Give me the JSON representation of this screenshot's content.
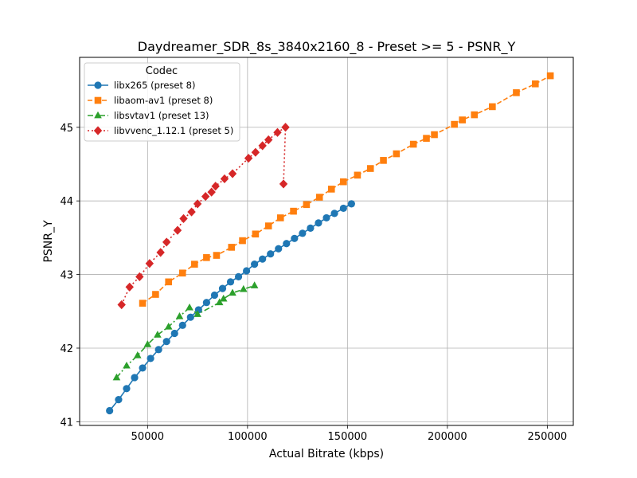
{
  "chart_data": {
    "type": "line",
    "title": "Daydreamer_SDR_8s_3840x2160_8 - Preset >= 5 - PSNR_Y",
    "xlabel": "Actual Bitrate (kbps)",
    "ylabel": "PSNR_Y",
    "xlim": [
      16000,
      263000
    ],
    "ylim": [
      40.95,
      45.95
    ],
    "xticks": [
      50000,
      100000,
      150000,
      200000,
      250000
    ],
    "xtick_labels": [
      "50000",
      "100000",
      "150000",
      "200000",
      "250000"
    ],
    "yticks": [
      41,
      42,
      43,
      44,
      45
    ],
    "ytick_labels": [
      "41",
      "42",
      "43",
      "44",
      "45"
    ],
    "grid": true,
    "legend": {
      "title": "Codec",
      "position": "top-left"
    },
    "series": [
      {
        "name": "libx265 (preset 8)",
        "color": "#1f77b4",
        "linestyle": "solid",
        "marker": "circle",
        "points": [
          [
            31000,
            41.15
          ],
          [
            35500,
            41.3
          ],
          [
            39500,
            41.45
          ],
          [
            43500,
            41.6
          ],
          [
            47500,
            41.73
          ],
          [
            51500,
            41.86
          ],
          [
            55500,
            41.98
          ],
          [
            59500,
            42.09
          ],
          [
            63500,
            42.2
          ],
          [
            67500,
            42.31
          ],
          [
            71500,
            42.42
          ],
          [
            75500,
            42.52
          ],
          [
            79500,
            42.62
          ],
          [
            83500,
            42.72
          ],
          [
            87500,
            42.81
          ],
          [
            91500,
            42.9
          ],
          [
            95500,
            42.97
          ],
          [
            99500,
            43.05
          ],
          [
            103500,
            43.14
          ],
          [
            107500,
            43.21
          ],
          [
            111500,
            43.28
          ],
          [
            115500,
            43.35
          ],
          [
            119500,
            43.42
          ],
          [
            123500,
            43.49
          ],
          [
            127500,
            43.56
          ],
          [
            131500,
            43.63
          ],
          [
            135500,
            43.7
          ],
          [
            139500,
            43.77
          ],
          [
            143500,
            43.83
          ],
          [
            148000,
            43.9
          ],
          [
            152000,
            43.96
          ]
        ]
      },
      {
        "name": "libaom-av1 (preset 8)",
        "color": "#ff7f0e",
        "linestyle": "dashed",
        "marker": "square",
        "points": [
          [
            47500,
            42.61
          ],
          [
            54000,
            42.73
          ],
          [
            60500,
            42.9
          ],
          [
            67500,
            43.02
          ],
          [
            73500,
            43.14
          ],
          [
            79500,
            43.23
          ],
          [
            84500,
            43.26
          ],
          [
            92000,
            43.37
          ],
          [
            97500,
            43.46
          ],
          [
            104000,
            43.55
          ],
          [
            110500,
            43.66
          ],
          [
            116500,
            43.77
          ],
          [
            123000,
            43.86
          ],
          [
            129500,
            43.95
          ],
          [
            136000,
            44.05
          ],
          [
            142000,
            44.16
          ],
          [
            148000,
            44.26
          ],
          [
            155000,
            44.35
          ],
          [
            161500,
            44.44
          ],
          [
            168000,
            44.55
          ],
          [
            174500,
            44.64
          ],
          [
            183000,
            44.77
          ],
          [
            189500,
            44.85
          ],
          [
            193500,
            44.9
          ],
          [
            203500,
            45.04
          ],
          [
            207500,
            45.1
          ],
          [
            213500,
            45.17
          ],
          [
            222500,
            45.28
          ],
          [
            234500,
            45.47
          ],
          [
            244000,
            45.59
          ],
          [
            251500,
            45.7
          ]
        ]
      },
      {
        "name": "libsvtav1 (preset 13)",
        "color": "#2ca02c",
        "linestyle": "dashdot",
        "marker": "triangle",
        "points": [
          [
            34500,
            41.6
          ],
          [
            39500,
            41.76
          ],
          [
            45000,
            41.9
          ],
          [
            50000,
            42.05
          ],
          [
            55000,
            42.18
          ],
          [
            60500,
            42.29
          ],
          [
            66000,
            42.43
          ],
          [
            71000,
            42.55
          ],
          [
            75000,
            42.46
          ],
          [
            86000,
            42.62
          ],
          [
            88000,
            42.67
          ],
          [
            92500,
            42.75
          ],
          [
            98000,
            42.8
          ],
          [
            103500,
            42.85
          ]
        ]
      },
      {
        "name": "libvvenc_1.12.1 (preset 5)",
        "color": "#d62728",
        "linestyle": "dotted",
        "marker": "diamond",
        "points": [
          [
            37000,
            42.59
          ],
          [
            41000,
            42.83
          ],
          [
            46000,
            42.97
          ],
          [
            51000,
            43.15
          ],
          [
            56500,
            43.3
          ],
          [
            59500,
            43.44
          ],
          [
            65000,
            43.6
          ],
          [
            68000,
            43.76
          ],
          [
            72000,
            43.85
          ],
          [
            75000,
            43.96
          ],
          [
            79000,
            44.06
          ],
          [
            82000,
            44.12
          ],
          [
            84000,
            44.2
          ],
          [
            88500,
            44.3
          ],
          [
            92500,
            44.37
          ],
          [
            100500,
            44.58
          ],
          [
            104000,
            44.66
          ],
          [
            107500,
            44.75
          ],
          [
            110500,
            44.83
          ],
          [
            115000,
            44.93
          ],
          [
            119000,
            45.0
          ],
          [
            118000,
            44.23
          ]
        ]
      }
    ]
  }
}
